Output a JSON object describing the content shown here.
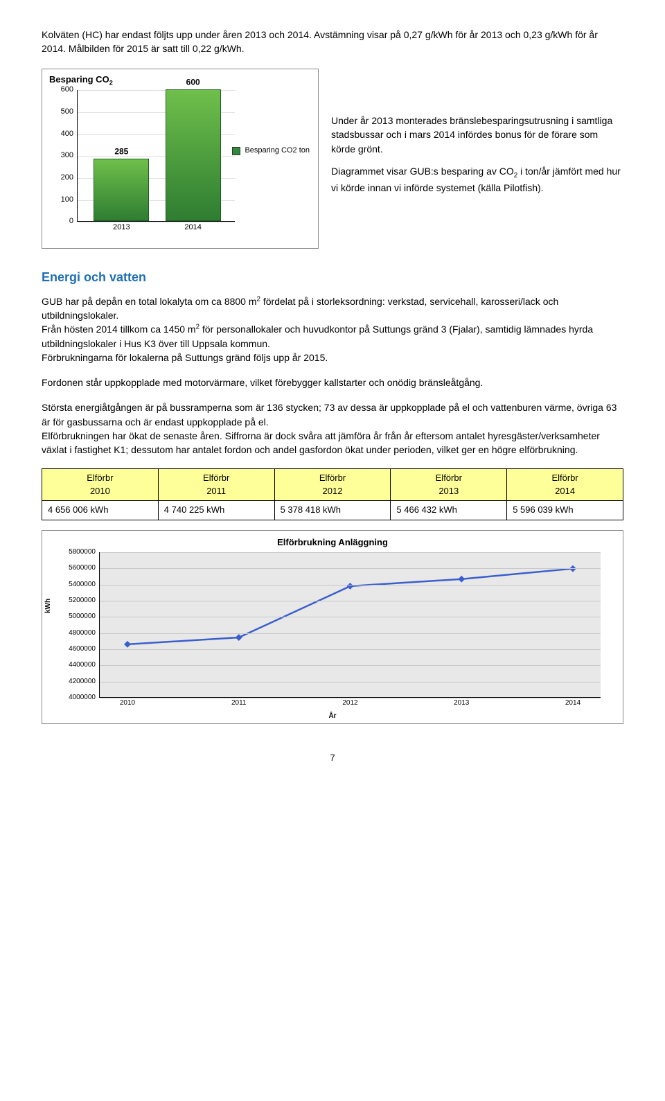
{
  "intro_para": "Kolväten (HC) har endast följts upp under åren 2013 och 2014. Avstämning visar på 0,27 g/kWh för år 2013 och 0,23 g/kWh för år 2014. Målbilden för 2015 är satt till 0,22 g/kWh.",
  "bar_chart": {
    "title_prefix": "Besparing CO",
    "title_sub": "2",
    "categories": [
      "2013",
      "2014"
    ],
    "values": [
      285,
      600
    ],
    "value_labels": [
      "285",
      "600"
    ],
    "bar_fill_top": "#6fbf4b",
    "bar_fill_bottom": "#2e7d32",
    "ymin": 0,
    "ymax": 600,
    "ytick_step": 100,
    "legend_label": "Besparing CO2 ton",
    "legend_color": "#2e8b3d",
    "grid_color": "#e0e0e0"
  },
  "side_text_1": "Under år 2013 monterades bränslebesparingsutrusning i samtliga stadsbussar och i mars 2014 infördes bonus för de förare som körde grönt.",
  "side_text_2_prefix": "Diagrammet visar GUB:s besparing av CO",
  "side_text_2_sub": "2",
  "side_text_2_suffix": " i ton/år jämfört med hur vi körde innan vi införde systemet (källa Pilotfish).",
  "energy_title": "Energi och vatten",
  "energy_p1_a": "GUB har på depån en total lokalyta om ca 8800 m",
  "energy_p1_sup": "2",
  "energy_p1_b": " fördelat på i storleksordning: verkstad, servicehall, karosseri/lack och utbildningslokaler.",
  "energy_p1_c": "Från hösten 2014 tillkom ca 1450 m",
  "energy_p1_sup2": "2",
  "energy_p1_d": " för personallokaler och huvudkontor på Suttungs gränd 3 (Fjalar), samtidig lämnades hyrda utbildningslokaler i Hus K3 över till Uppsala kommun.",
  "energy_p1_e": "Förbrukningarna för lokalerna på Suttungs gränd följs upp år 2015.",
  "energy_p2": "Fordonen står uppkopplade med motorvärmare, vilket förebygger kallstarter och onödig bränsleåtgång.",
  "energy_p3": "Största energiåtgången är på bussramperna som är 136 stycken; 73 av dessa är uppkopplade på el och vattenburen värme, övriga 63 är för gasbussarna och är endast uppkopplade på el.",
  "energy_p4": "Elförbrukningen har ökat de senaste åren. Siffrorna är dock svåra att jämföra år från år eftersom antalet hyresgäster/verksamheter växlat i fastighet K1; dessutom har antalet fordon och andel gasfordon ökat under perioden, vilket ger en högre elförbrukning.",
  "elec_table": {
    "header_bg": "#ffff99",
    "headers": [
      {
        "line1": "Elförbr",
        "line2": "2010"
      },
      {
        "line1": "Elförbr",
        "line2": "2011"
      },
      {
        "line1": "Elförbr",
        "line2": "2012"
      },
      {
        "line1": "Elförbr",
        "line2": "2013"
      },
      {
        "line1": "Elförbr",
        "line2": "2014"
      }
    ],
    "row": [
      "4 656 006 kWh",
      "4 740 225 kWh",
      "5 378 418 kWh",
      "5 466 432 kWh",
      "5 596 039 kWh"
    ]
  },
  "line_chart": {
    "title": "Elförbrukning Anläggning",
    "years": [
      2010,
      2011,
      2012,
      2013,
      2014
    ],
    "values": [
      4656006,
      4740225,
      5378418,
      5466432,
      5596039
    ],
    "ymin": 4000000,
    "ymax": 5800000,
    "ytick_step": 200000,
    "line_color": "#3a5fcd",
    "marker_color": "#3a5fcd",
    "plot_bg": "#e8e8e8",
    "grid_color": "#c8c8c8",
    "ylabel": "kWh",
    "xlabel": "År"
  },
  "page_number": "7"
}
